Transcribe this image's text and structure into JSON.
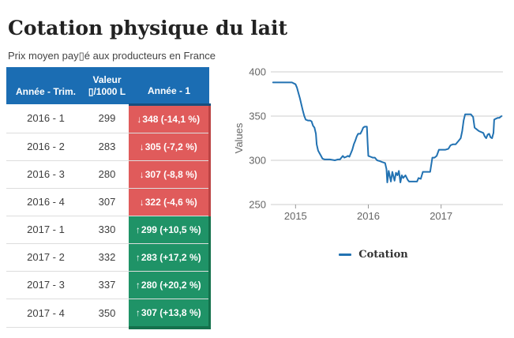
{
  "page": {
    "title": "Cotation physique du lait",
    "subtitle": "Prix moyen pay▯é aux producteurs en France"
  },
  "colors": {
    "header_blue": "#1b6db3",
    "header_blue_dark": "#174e7d",
    "red": "#e05b5b",
    "red_dark": "#bc4444",
    "green": "#1f9367",
    "green_dark": "#14714c",
    "line_blue": "#2272b2",
    "grid_gray": "#cccccc",
    "axis_text_gray": "#666666"
  },
  "table": {
    "header": {
      "period": "Année - Trim.",
      "value_line1": "Valeur",
      "value_line2": "▯/1000 L",
      "prev": "Année - 1"
    },
    "icons": {
      "down": "↓",
      "up": "↑"
    },
    "rows": [
      {
        "period": "2016 - 1",
        "value": "299",
        "dir": "down",
        "delta": "348 (-14,1 %)"
      },
      {
        "period": "2016 - 2",
        "value": "283",
        "dir": "down",
        "delta": "305 (-7,2 %)"
      },
      {
        "period": "2016 - 3",
        "value": "280",
        "dir": "down",
        "delta": "307 (-8,8 %)"
      },
      {
        "period": "2016 - 4",
        "value": "307",
        "dir": "down",
        "delta": "322 (-4,6 %)"
      },
      {
        "period": "2017 - 1",
        "value": "330",
        "dir": "up",
        "delta": "299 (+10,5 %)"
      },
      {
        "period": "2017 - 2",
        "value": "332",
        "dir": "up",
        "delta": "283 (+17,2 %)"
      },
      {
        "period": "2017 - 3",
        "value": "337",
        "dir": "up",
        "delta": "280 (+20,2 %)"
      },
      {
        "period": "2017 - 4",
        "value": "350",
        "dir": "up",
        "delta": "307 (+13,8 %)"
      }
    ]
  },
  "chart_data": {
    "type": "line",
    "title": "",
    "xlabel": "",
    "ylabel": "Values",
    "ylim": [
      250,
      400
    ],
    "yticks": [
      250,
      300,
      350,
      400
    ],
    "xticks": [
      2015,
      2016,
      2017
    ],
    "xlim": [
      2014.66,
      2017.85
    ],
    "grid": true,
    "legend": {
      "position": "bottom",
      "label": "Cotation"
    },
    "series": [
      {
        "name": "Cotation",
        "color": "#2272b2",
        "points": [
          [
            2014.69,
            388
          ],
          [
            2014.95,
            388
          ],
          [
            2015.0,
            386
          ],
          [
            2015.02,
            382
          ],
          [
            2015.04,
            376
          ],
          [
            2015.06,
            370
          ],
          [
            2015.08,
            363
          ],
          [
            2015.1,
            356
          ],
          [
            2015.12,
            350
          ],
          [
            2015.14,
            346
          ],
          [
            2015.17,
            345
          ],
          [
            2015.2,
            345
          ],
          [
            2015.22,
            344
          ],
          [
            2015.24,
            339
          ],
          [
            2015.26,
            337
          ],
          [
            2015.28,
            330
          ],
          [
            2015.29,
            318
          ],
          [
            2015.31,
            311
          ],
          [
            2015.33,
            308
          ],
          [
            2015.35,
            305
          ],
          [
            2015.37,
            302
          ],
          [
            2015.4,
            301
          ],
          [
            2015.47,
            301
          ],
          [
            2015.54,
            300
          ],
          [
            2015.58,
            301
          ],
          [
            2015.61,
            301
          ],
          [
            2015.63,
            303
          ],
          [
            2015.65,
            305
          ],
          [
            2015.67,
            303
          ],
          [
            2015.7,
            304
          ],
          [
            2015.72,
            305
          ],
          [
            2015.74,
            304
          ],
          [
            2015.76,
            308
          ],
          [
            2015.78,
            312
          ],
          [
            2015.8,
            318
          ],
          [
            2015.82,
            322
          ],
          [
            2015.84,
            327
          ],
          [
            2015.86,
            330
          ],
          [
            2015.89,
            330
          ],
          [
            2015.91,
            333
          ],
          [
            2015.93,
            337
          ],
          [
            2015.95,
            338
          ],
          [
            2015.98,
            338
          ],
          [
            2015.99,
            320
          ],
          [
            2016.0,
            305
          ],
          [
            2016.03,
            304
          ],
          [
            2016.06,
            303
          ],
          [
            2016.09,
            303
          ],
          [
            2016.12,
            300
          ],
          [
            2016.16,
            299
          ],
          [
            2016.19,
            298
          ],
          [
            2016.23,
            297
          ],
          [
            2016.25,
            290
          ],
          [
            2016.26,
            275
          ],
          [
            2016.28,
            288
          ],
          [
            2016.31,
            276
          ],
          [
            2016.33,
            287
          ],
          [
            2016.36,
            277
          ],
          [
            2016.38,
            286
          ],
          [
            2016.4,
            283
          ],
          [
            2016.42,
            288
          ],
          [
            2016.44,
            275
          ],
          [
            2016.46,
            283
          ],
          [
            2016.48,
            280
          ],
          [
            2016.51,
            283
          ],
          [
            2016.54,
            278
          ],
          [
            2016.56,
            276
          ],
          [
            2016.62,
            276
          ],
          [
            2016.67,
            276
          ],
          [
            2016.69,
            280
          ],
          [
            2016.72,
            279
          ],
          [
            2016.75,
            287
          ],
          [
            2016.8,
            287
          ],
          [
            2016.85,
            287
          ],
          [
            2016.88,
            303
          ],
          [
            2016.91,
            303
          ],
          [
            2016.94,
            305
          ],
          [
            2016.97,
            312
          ],
          [
            2017.02,
            312
          ],
          [
            2017.06,
            312
          ],
          [
            2017.1,
            313
          ],
          [
            2017.13,
            317
          ],
          [
            2017.16,
            318
          ],
          [
            2017.2,
            318
          ],
          [
            2017.22,
            320
          ],
          [
            2017.24,
            322
          ],
          [
            2017.27,
            325
          ],
          [
            2017.29,
            333
          ],
          [
            2017.31,
            345
          ],
          [
            2017.33,
            352
          ],
          [
            2017.37,
            352
          ],
          [
            2017.41,
            352
          ],
          [
            2017.44,
            349
          ],
          [
            2017.46,
            337
          ],
          [
            2017.49,
            335
          ],
          [
            2017.52,
            333
          ],
          [
            2017.55,
            332
          ],
          [
            2017.58,
            331
          ],
          [
            2017.6,
            327
          ],
          [
            2017.62,
            325
          ],
          [
            2017.64,
            329
          ],
          [
            2017.66,
            330
          ],
          [
            2017.68,
            326
          ],
          [
            2017.7,
            325
          ],
          [
            2017.72,
            331
          ],
          [
            2017.73,
            346
          ],
          [
            2017.75,
            347
          ],
          [
            2017.78,
            348
          ],
          [
            2017.8,
            348
          ],
          [
            2017.83,
            350
          ]
        ]
      }
    ]
  }
}
